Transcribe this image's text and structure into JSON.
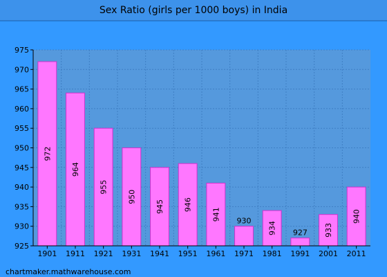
{
  "chart_data": {
    "type": "bar",
    "title": "Sex Ratio (girls per 1000 boys) in India",
    "categories": [
      "1901",
      "1911",
      "1921",
      "1931",
      "1941",
      "1951",
      "1961",
      "1971",
      "1981",
      "1991",
      "2001",
      "2011"
    ],
    "values": [
      972,
      964,
      955,
      950,
      945,
      946,
      941,
      930,
      934,
      927,
      933,
      940
    ],
    "ylim": [
      925,
      975
    ],
    "yticks": [
      925,
      930,
      935,
      940,
      945,
      950,
      955,
      960,
      965,
      970,
      975
    ],
    "grid": true,
    "xlabel": "",
    "ylabel": ""
  },
  "colors": {
    "page_bg": "#3399ff",
    "title_bar_bg": "#3d92eb",
    "plot_bg": "#5599dd",
    "bar_fill": "#ff77ff",
    "bar_stroke": "#cc33cc",
    "text": "#000000"
  },
  "footer": {
    "credit": "chartmaker.mathwarehouse.com"
  }
}
